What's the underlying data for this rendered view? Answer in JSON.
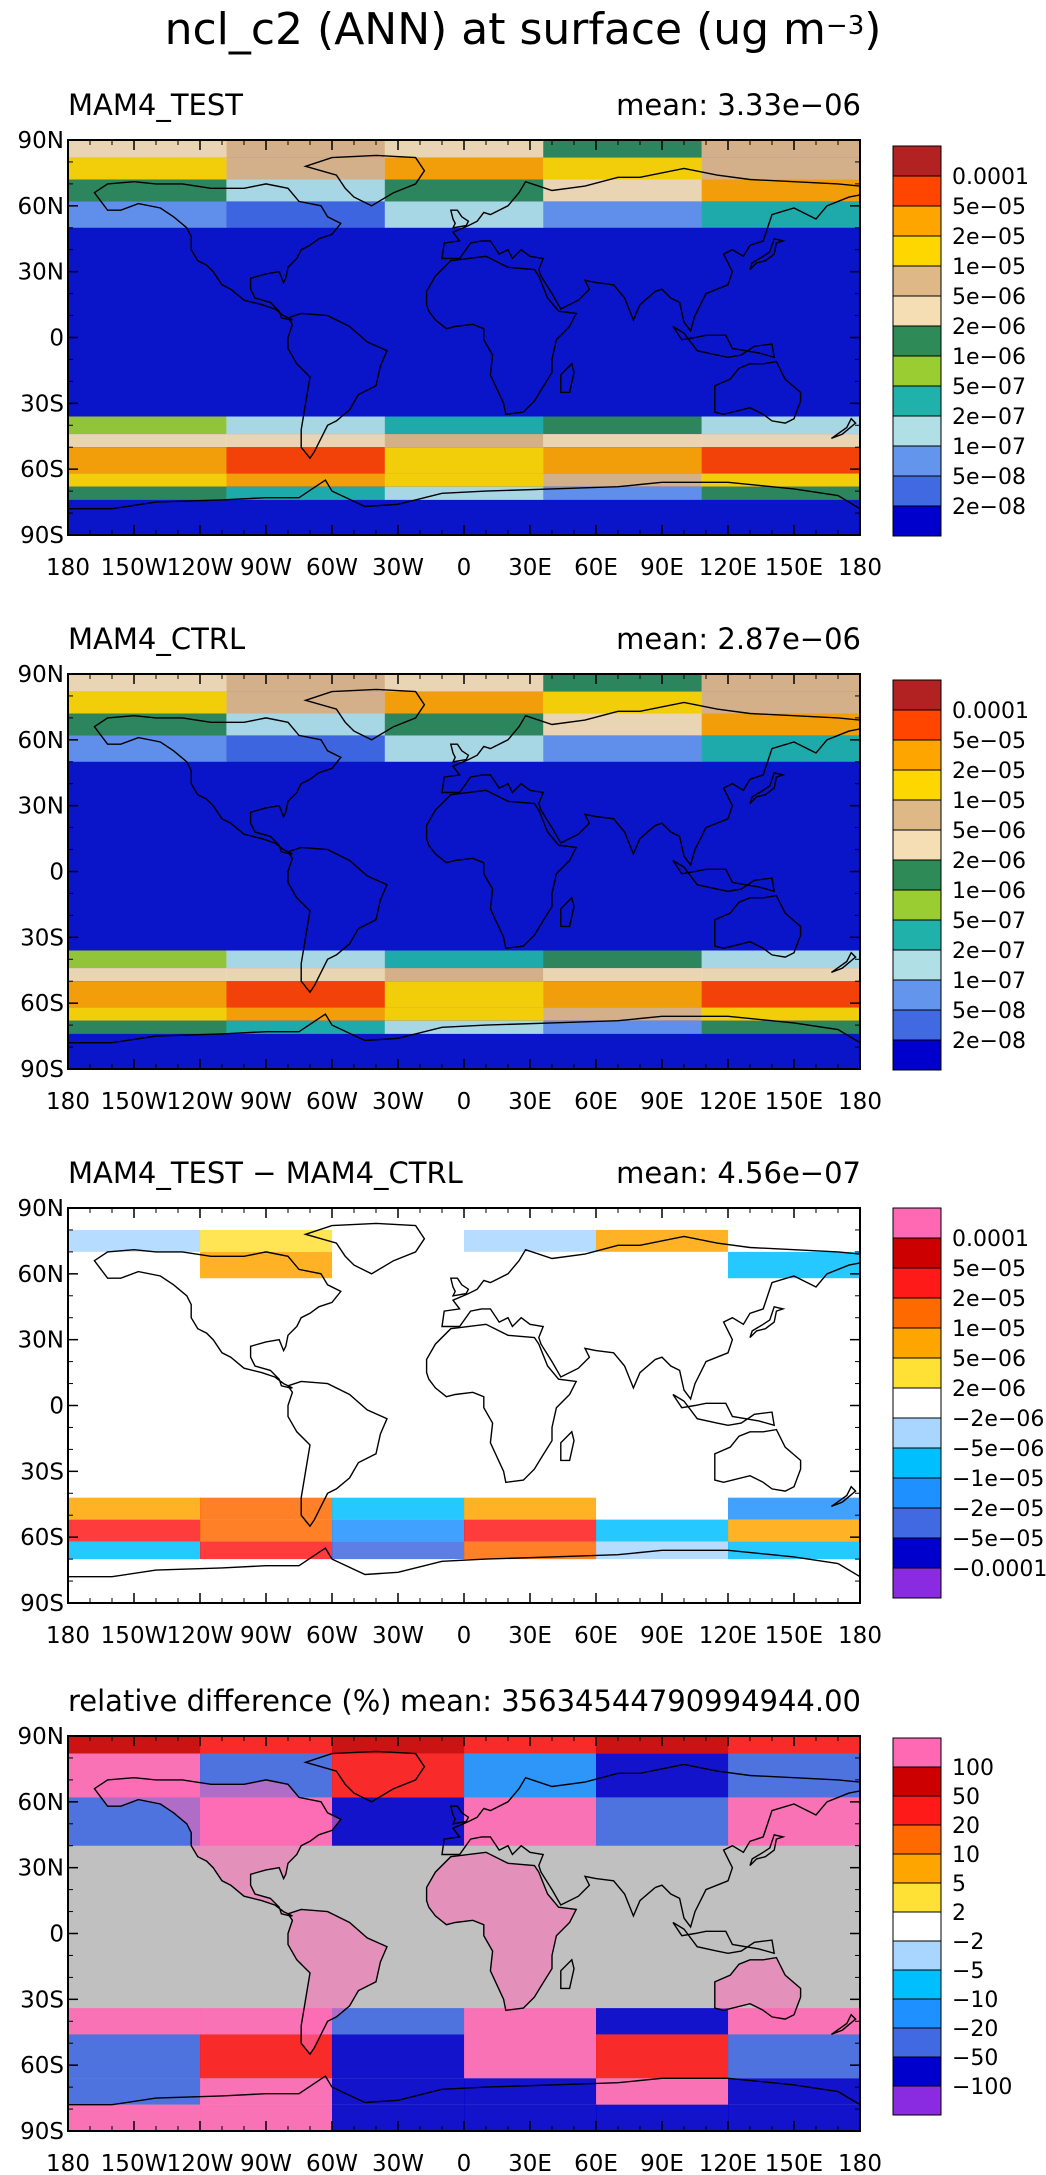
{
  "figure": {
    "title_prefix": "ncl_c2 (ANN) at surface (ug m",
    "title_exp": "−3",
    "title_suffix": ")"
  },
  "colors": {
    "ocean": "#0a14c8",
    "grey": "#c0c0c0",
    "coast": "#000000"
  },
  "panels": [
    {
      "title": "MAM4_TEST",
      "mean": "mean: 3.33e−06",
      "kind": "abs",
      "labels": [
        "0.0001",
        "5e−05",
        "2e−05",
        "1e−05",
        "5e−06",
        "2e−06",
        "1e−06",
        "5e−07",
        "2e−07",
        "1e−07",
        "5e−08",
        "2e−08"
      ],
      "colors": [
        "#b22222",
        "#ff4500",
        "#ffa500",
        "#ffd700",
        "#deb887",
        "#f5deb3",
        "#2e8b57",
        "#9acd32",
        "#20b2aa",
        "#b0e0e6",
        "#6495ed",
        "#4169e1",
        "#0000cd"
      ]
    },
    {
      "title": "MAM4_CTRL",
      "mean": "mean: 2.87e−06",
      "kind": "abs",
      "labels": [
        "0.0001",
        "5e−05",
        "2e−05",
        "1e−05",
        "5e−06",
        "2e−06",
        "1e−06",
        "5e−07",
        "2e−07",
        "1e−07",
        "5e−08",
        "2e−08"
      ],
      "colors": [
        "#b22222",
        "#ff4500",
        "#ffa500",
        "#ffd700",
        "#deb887",
        "#f5deb3",
        "#2e8b57",
        "#9acd32",
        "#20b2aa",
        "#b0e0e6",
        "#6495ed",
        "#4169e1",
        "#0000cd"
      ]
    },
    {
      "title": "MAM4_TEST − MAM4_CTRL",
      "mean": "mean: 4.56e−07",
      "kind": "diff",
      "labels": [
        "0.0001",
        "5e−05",
        "2e−05",
        "1e−05",
        "5e−06",
        "2e−06",
        "−2e−06",
        "−5e−06",
        "−1e−05",
        "−2e−05",
        "−5e−05",
        "−0.0001"
      ],
      "colors": [
        "#ff69b4",
        "#cc0000",
        "#ff1a1a",
        "#ff6a00",
        "#ffa500",
        "#ffe135",
        "#ffffff",
        "#a9d6ff",
        "#00bfff",
        "#1e90ff",
        "#4169e1",
        "#0000cd",
        "#8a2be2"
      ]
    },
    {
      "title": "relative difference (%)",
      "mean": "mean: 35634544790994944.00",
      "kind": "rel",
      "labels": [
        "100",
        "50",
        "20",
        "10",
        "5",
        "2",
        "−2",
        "−5",
        "−10",
        "−20",
        "−50",
        "−100"
      ],
      "colors": [
        "#ff69b4",
        "#cc0000",
        "#ff1a1a",
        "#ff6a00",
        "#ffa500",
        "#ffe135",
        "#ffffff",
        "#a9d6ff",
        "#00bfff",
        "#1e90ff",
        "#4169e1",
        "#0000cd",
        "#8a2be2"
      ]
    }
  ],
  "chart_data": {
    "type": "heatmap",
    "title": "ncl_c2 (ANN) at surface (ug m−3)",
    "x_ticks": [
      "180",
      "150W",
      "120W",
      "90W",
      "60W",
      "30W",
      "0",
      "30E",
      "60E",
      "90E",
      "120E",
      "150E",
      "180"
    ],
    "y_ticks": [
      "90N",
      "60N",
      "30N",
      "0",
      "30S",
      "60S",
      "90S"
    ],
    "x_range_deg": [
      -180,
      180
    ],
    "y_range_deg": [
      -90,
      90
    ],
    "panel_means": [
      3.33e-06,
      2.87e-06,
      4.56e-07,
      3.5634544790994944e+16
    ],
    "series": [
      {
        "name": "MAM4_TEST",
        "mean": 3.33e-06
      },
      {
        "name": "MAM4_CTRL",
        "mean": 2.87e-06
      },
      {
        "name": "MAM4_TEST − MAM4_CTRL",
        "mean": 4.56e-07
      },
      {
        "name": "relative difference (%)",
        "mean": 3.5634544790994944e+16
      }
    ]
  }
}
